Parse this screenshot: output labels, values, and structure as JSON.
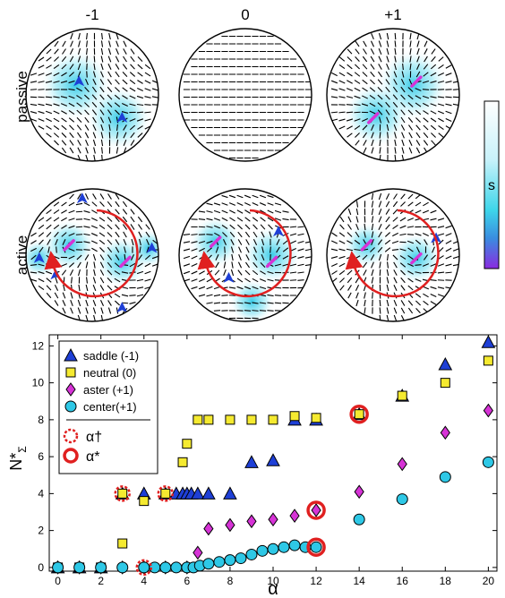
{
  "panels": {
    "column_labels": [
      "-1",
      "0",
      "+1"
    ],
    "row_labels": [
      "passive",
      "active"
    ],
    "colorbar_label": "s",
    "colors": {
      "core": "#2ec8e6",
      "saddle": "#1e3fd6",
      "aster": "#d633d6",
      "arrow": "#e02020",
      "director": "#000000"
    }
  },
  "chart_data": {
    "type": "scatter",
    "title": "",
    "xlabel": "α",
    "ylabel": "N*",
    "ylabel_sub": "Σ",
    "xlim": [
      -0.4,
      20.4
    ],
    "ylim": [
      -0.2,
      12.6
    ],
    "xticks": [
      0,
      2,
      4,
      6,
      8,
      10,
      12,
      14,
      16,
      18,
      20
    ],
    "yticks": [
      0,
      2,
      4,
      6,
      8,
      10,
      12
    ],
    "grid": false,
    "legend_position": "top-left",
    "series": [
      {
        "name": "saddle (-1)",
        "marker": "triangle",
        "color": "#1e3fd6",
        "points": [
          [
            0,
            0
          ],
          [
            1,
            0
          ],
          [
            2,
            0
          ],
          [
            3,
            4
          ],
          [
            4,
            4
          ],
          [
            5,
            4
          ],
          [
            5.5,
            4
          ],
          [
            5.8,
            4
          ],
          [
            6,
            4
          ],
          [
            6.2,
            4
          ],
          [
            6.5,
            4
          ],
          [
            7,
            4
          ],
          [
            8,
            4
          ],
          [
            9,
            5.7
          ],
          [
            10,
            5.8
          ],
          [
            11,
            8
          ],
          [
            12,
            8
          ],
          [
            14,
            8.3
          ],
          [
            16,
            9.3
          ],
          [
            18,
            11
          ],
          [
            20,
            12.2
          ]
        ]
      },
      {
        "name": "neutral (0)",
        "marker": "square",
        "color": "#f5ea30",
        "points": [
          [
            0,
            0
          ],
          [
            1,
            0
          ],
          [
            2,
            0
          ],
          [
            3,
            1.3
          ],
          [
            3,
            4
          ],
          [
            4,
            3.6
          ],
          [
            5,
            4
          ],
          [
            5.8,
            5.7
          ],
          [
            6,
            6.7
          ],
          [
            6.5,
            8
          ],
          [
            7,
            8
          ],
          [
            8,
            8
          ],
          [
            9,
            8
          ],
          [
            10,
            8
          ],
          [
            11,
            8.2
          ],
          [
            12,
            8.1
          ],
          [
            14,
            8.3
          ],
          [
            16,
            9.3
          ],
          [
            18,
            10
          ],
          [
            20,
            11.2
          ]
        ]
      },
      {
        "name": "aster (+1)",
        "marker": "diamond",
        "color": "#d633d6",
        "points": [
          [
            0,
            0
          ],
          [
            1,
            0
          ],
          [
            2,
            0
          ],
          [
            3,
            0
          ],
          [
            4,
            0
          ],
          [
            5,
            0
          ],
          [
            6,
            0
          ],
          [
            6.5,
            0.8
          ],
          [
            7,
            2.1
          ],
          [
            8,
            2.3
          ],
          [
            9,
            2.5
          ],
          [
            10,
            2.6
          ],
          [
            11,
            2.8
          ],
          [
            12,
            3.1
          ],
          [
            14,
            4.1
          ],
          [
            16,
            5.6
          ],
          [
            18,
            7.3
          ],
          [
            20,
            8.5
          ]
        ]
      },
      {
        "name": "center(+1)",
        "marker": "circle",
        "color": "#2ec8e6",
        "points": [
          [
            0,
            0
          ],
          [
            1,
            0
          ],
          [
            2,
            0
          ],
          [
            3,
            0
          ],
          [
            4,
            0
          ],
          [
            4.5,
            0
          ],
          [
            5,
            0
          ],
          [
            5.5,
            0
          ],
          [
            6,
            0
          ],
          [
            6.3,
            0
          ],
          [
            6.6,
            0.1
          ],
          [
            7,
            0.2
          ],
          [
            7.5,
            0.3
          ],
          [
            8,
            0.4
          ],
          [
            8.5,
            0.5
          ],
          [
            9,
            0.7
          ],
          [
            9.5,
            0.9
          ],
          [
            10,
            1
          ],
          [
            10.5,
            1.1
          ],
          [
            11,
            1.2
          ],
          [
            11.5,
            1.1
          ],
          [
            12,
            1.1
          ],
          [
            14,
            2.6
          ],
          [
            16,
            3.7
          ],
          [
            18,
            4.9
          ],
          [
            20,
            5.7
          ]
        ]
      }
    ],
    "thresholds": [
      {
        "name": "α†",
        "style": "dashed-circle",
        "color": "#e02020",
        "points": [
          [
            3,
            4
          ],
          [
            4,
            0
          ],
          [
            5,
            4
          ]
        ]
      },
      {
        "name": "α*",
        "style": "thick-circle",
        "color": "#e02020",
        "points": [
          [
            12,
            3.1
          ],
          [
            12,
            1.1
          ],
          [
            14,
            8.3
          ]
        ]
      }
    ]
  }
}
